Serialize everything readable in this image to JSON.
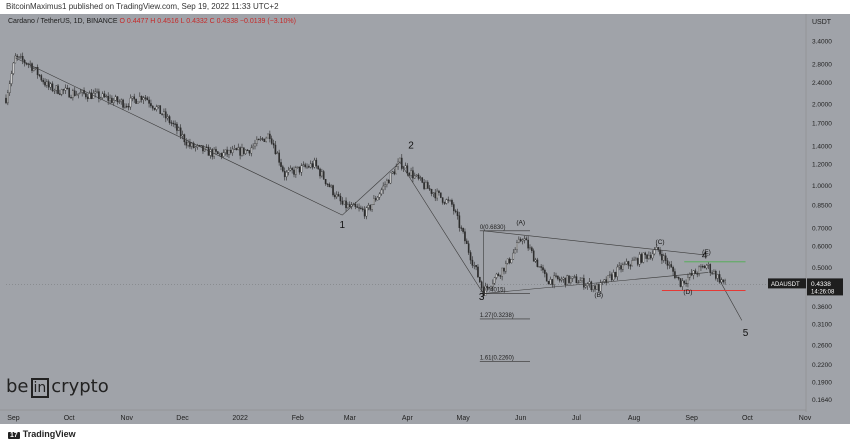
{
  "header": {
    "published_text": "BitcoinMaximus1 published on TradingView.com, Sep 19, 2022 11:33 UTC+2"
  },
  "symbol": {
    "name": "Cardano / TetherUS, 1D, BINANCE",
    "ohlc": "O 0.4477  H 0.4516  L 0.4332  C 0.4338  −0.0139 (−3.10%)"
  },
  "price_tag": {
    "ticker": "ADAUSDT",
    "price": "0.4338",
    "countdown": "14:26:08"
  },
  "footer": {
    "logo_text": "TradingView",
    "logo_mark": "17"
  },
  "brand": {
    "be": "be",
    "in": "in",
    "crypto": "crypto"
  },
  "colors": {
    "background": "#a0a3a9",
    "candles": "#2b2b2b",
    "support_line": "#e53935",
    "resistance_line": "#4caf50",
    "price_tag_bg": "#1e1e1e",
    "wave_lines": "#3a3a3a"
  },
  "chart_data": {
    "type": "candlestick",
    "y_axis_label": "USDT",
    "y_scale": "log",
    "ylim": [
      0.155,
      3.8
    ],
    "y_ticks": [
      {
        "value": 3.4,
        "label": "3.4000"
      },
      {
        "value": 2.8,
        "label": "2.8000"
      },
      {
        "value": 2.4,
        "label": "2.4000"
      },
      {
        "value": 2.0,
        "label": "2.0000"
      },
      {
        "value": 1.7,
        "label": "1.7000"
      },
      {
        "value": 1.4,
        "label": "1.4000"
      },
      {
        "value": 1.2,
        "label": "1.2000"
      },
      {
        "value": 1.0,
        "label": "1.0000"
      },
      {
        "value": 0.85,
        "label": "0.8500"
      },
      {
        "value": 0.7,
        "label": "0.7000"
      },
      {
        "value": 0.6,
        "label": "0.6000"
      },
      {
        "value": 0.5,
        "label": "0.5000"
      },
      {
        "value": 0.36,
        "label": "0.3600"
      },
      {
        "value": 0.31,
        "label": "0.3100"
      },
      {
        "value": 0.26,
        "label": "0.2600"
      },
      {
        "value": 0.22,
        "label": "0.2200"
      },
      {
        "value": 0.19,
        "label": "0.1900"
      },
      {
        "value": 0.164,
        "label": "0.1640"
      }
    ],
    "x_range": [
      "2021-08-28",
      "2022-11-01"
    ],
    "x_ticks": [
      {
        "date": "2021-09-01",
        "label": "Sep"
      },
      {
        "date": "2021-10-01",
        "label": "Oct"
      },
      {
        "date": "2021-11-01",
        "label": "Nov"
      },
      {
        "date": "2021-12-01",
        "label": "Dec"
      },
      {
        "date": "2022-01-01",
        "label": "2022"
      },
      {
        "date": "2022-02-01",
        "label": "Feb"
      },
      {
        "date": "2022-03-01",
        "label": "Mar"
      },
      {
        "date": "2022-04-01",
        "label": "Apr"
      },
      {
        "date": "2022-05-01",
        "label": "May"
      },
      {
        "date": "2022-06-01",
        "label": "Jun"
      },
      {
        "date": "2022-07-01",
        "label": "Jul"
      },
      {
        "date": "2022-08-01",
        "label": "Aug"
      },
      {
        "date": "2022-09-01",
        "label": "Sep"
      },
      {
        "date": "2022-10-01",
        "label": "Oct"
      },
      {
        "date": "2022-11-01",
        "label": "Nov"
      }
    ],
    "price_path": [
      {
        "date": "2021-08-28",
        "price": 2.1
      },
      {
        "date": "2021-09-02",
        "price": 2.95
      },
      {
        "date": "2021-09-10",
        "price": 2.8
      },
      {
        "date": "2021-09-20",
        "price": 2.3
      },
      {
        "date": "2021-10-01",
        "price": 2.2
      },
      {
        "date": "2021-10-15",
        "price": 2.15
      },
      {
        "date": "2021-11-01",
        "price": 2.0
      },
      {
        "date": "2021-11-10",
        "price": 2.15
      },
      {
        "date": "2021-11-25",
        "price": 1.7
      },
      {
        "date": "2021-12-05",
        "price": 1.4
      },
      {
        "date": "2021-12-20",
        "price": 1.3
      },
      {
        "date": "2022-01-05",
        "price": 1.35
      },
      {
        "date": "2022-01-17",
        "price": 1.55
      },
      {
        "date": "2022-01-25",
        "price": 1.1
      },
      {
        "date": "2022-02-10",
        "price": 1.2
      },
      {
        "date": "2022-02-25",
        "price": 0.85
      },
      {
        "date": "2022-03-10",
        "price": 0.8
      },
      {
        "date": "2022-03-28",
        "price": 1.22
      },
      {
        "date": "2022-04-10",
        "price": 1.0
      },
      {
        "date": "2022-04-25",
        "price": 0.85
      },
      {
        "date": "2022-05-12",
        "price": 0.41
      },
      {
        "date": "2022-05-25",
        "price": 0.52
      },
      {
        "date": "2022-06-02",
        "price": 0.65
      },
      {
        "date": "2022-06-15",
        "price": 0.45
      },
      {
        "date": "2022-07-01",
        "price": 0.45
      },
      {
        "date": "2022-07-13",
        "price": 0.42
      },
      {
        "date": "2022-07-25",
        "price": 0.5
      },
      {
        "date": "2022-08-14",
        "price": 0.58
      },
      {
        "date": "2022-08-26",
        "price": 0.44
      },
      {
        "date": "2022-09-09",
        "price": 0.51
      },
      {
        "date": "2022-09-19",
        "price": 0.4338
      }
    ],
    "annotations": {
      "wave_labels": [
        {
          "text": "1",
          "date": "2022-02-25",
          "price": 0.7
        },
        {
          "text": "2",
          "date": "2022-04-03",
          "price": 1.37
        },
        {
          "text": "3",
          "date": "2022-05-11",
          "price": 0.38
        },
        {
          "text": "(A)",
          "date": "2022-06-01",
          "price": 0.72
        },
        {
          "text": "(B)",
          "date": "2022-07-13",
          "price": 0.39
        },
        {
          "text": "(C)",
          "date": "2022-08-15",
          "price": 0.61
        },
        {
          "text": "(D)",
          "date": "2022-08-30",
          "price": 0.4
        },
        {
          "text": "(E)",
          "date": "2022-09-09",
          "price": 0.56
        },
        {
          "text": "4",
          "date": "2022-09-08",
          "price": 0.54
        },
        {
          "text": "5",
          "date": "2022-09-30",
          "price": 0.28
        }
      ],
      "fib_levels": [
        {
          "label": "0(0.6830)",
          "price": 0.683
        },
        {
          "label": "1(0.4015)",
          "price": 0.4015
        },
        {
          "label": "1.27(0.3238)",
          "price": 0.3238
        },
        {
          "label": "1.61(0.2260)",
          "price": 0.226
        }
      ],
      "support_level": 0.412,
      "resistance_level": 0.525
    }
  }
}
